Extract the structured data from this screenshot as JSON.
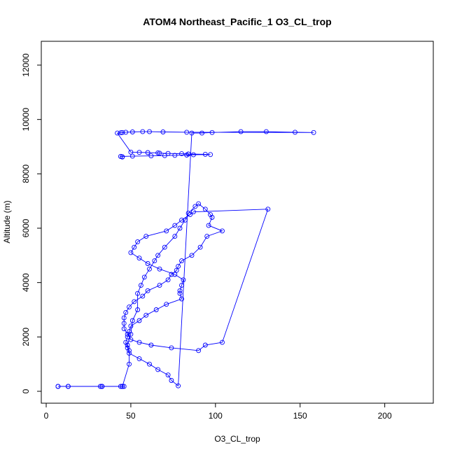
{
  "chart_data": {
    "type": "line",
    "title": "ATOM4 Northeast_Pacific_1 O3_CL_trop",
    "xlabel": "O3_CL_trop",
    "ylabel": "Altitude (m)",
    "xlim": [
      0,
      220
    ],
    "ylim": [
      0,
      12300
    ],
    "xticks": [
      "0",
      "50",
      "100",
      "150",
      "200"
    ],
    "yticks": [
      "0",
      "2000",
      "4000",
      "6000",
      "8000",
      "10000",
      "12000"
    ],
    "grid": false,
    "legend": "none",
    "color": "#0000ff",
    "marker": "open-circle",
    "series": [
      {
        "x": [
          7,
          7,
          13,
          13,
          32,
          33,
          33,
          33,
          46,
          45,
          44,
          45,
          49,
          49,
          48,
          50,
          51,
          54,
          54,
          56,
          58,
          61,
          64,
          66,
          70,
          76,
          79,
          82,
          84,
          88,
          90,
          94,
          97,
          98,
          96,
          104,
          95,
          91,
          86,
          80,
          78,
          77,
          74,
          72,
          67,
          60,
          57,
          52,
          49,
          47,
          46,
          46,
          46,
          48,
          50,
          55,
          62,
          74,
          90,
          94,
          104,
          131,
          87,
          85,
          80,
          76,
          71,
          59,
          54,
          52,
          50,
          55,
          60,
          67,
          76,
          81,
          80,
          79,
          79,
          80,
          71,
          65,
          59,
          55,
          50,
          49,
          48,
          47,
          48,
          49,
          55,
          61,
          66,
          72,
          74,
          78,
          86,
          92,
          98,
          115,
          130,
          147,
          158,
          83,
          69,
          61,
          57,
          51,
          47,
          45,
          44,
          42,
          50,
          55,
          60,
          66,
          67,
          72,
          80,
          84,
          94,
          97,
          87,
          83,
          76,
          70,
          62,
          51,
          44,
          45,
          45
        ],
        "y": [
          180,
          180,
          180,
          180,
          180,
          180,
          180,
          180,
          180,
          180,
          180,
          180,
          1000,
          1500,
          1700,
          2100,
          2600,
          3000,
          3600,
          3900,
          4200,
          4500,
          4800,
          5000,
          5300,
          5700,
          6000,
          6300,
          6550,
          6800,
          6900,
          6700,
          6500,
          6400,
          6100,
          5900,
          5700,
          5300,
          5000,
          4800,
          4600,
          4450,
          4300,
          4100,
          3900,
          3700,
          3500,
          3300,
          3100,
          2900,
          2700,
          2500,
          2300,
          2100,
          1900,
          1800,
          1700,
          1600,
          1500,
          1700,
          1800,
          6700,
          6600,
          6500,
          6300,
          6100,
          5900,
          5700,
          5500,
          5300,
          5100,
          4900,
          4700,
          4500,
          4300,
          4100,
          3900,
          3700,
          3600,
          3400,
          3200,
          3000,
          2800,
          2600,
          2400,
          2200,
          2000,
          1800,
          1600,
          1400,
          1200,
          1000,
          800,
          600,
          400,
          200,
          9500,
          9500,
          9520,
          9550,
          9550,
          9530,
          9520,
          9530,
          9540,
          9550,
          9550,
          9540,
          9530,
          9520,
          9510,
          9500,
          8800,
          8790,
          8780,
          8770,
          8760,
          8750,
          8740,
          8730,
          8720,
          8710,
          8700,
          8690,
          8680,
          8670,
          8660,
          8650,
          8640,
          8630,
          8620
        ]
      }
    ]
  }
}
